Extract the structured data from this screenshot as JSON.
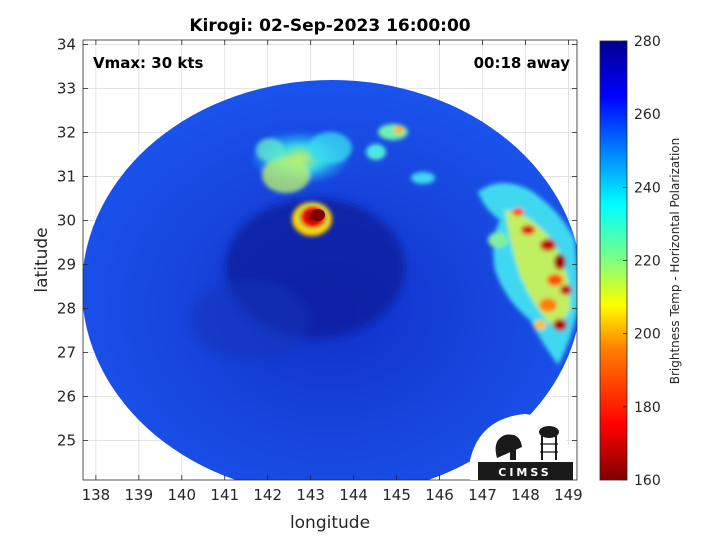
{
  "chart_data": {
    "type": "heatmap",
    "title": "Kirogi: 02-Sep-2023 16:00:00",
    "xlabel": "longitude",
    "ylabel": "latitude",
    "xlim": [
      137.7,
      149.2
    ],
    "ylim": [
      24.1,
      34.1
    ],
    "xticks": [
      138,
      139,
      140,
      141,
      142,
      143,
      144,
      145,
      146,
      147,
      148,
      149
    ],
    "yticks": [
      25,
      26,
      27,
      28,
      29,
      30,
      31,
      32,
      33,
      34
    ],
    "grid": true,
    "annotations": {
      "vmax": "Vmax: 30 kts",
      "away": "00:18 away"
    },
    "colorbar": {
      "label": "Brightness Temp - Horizontal Polarization",
      "range": [
        160,
        280
      ],
      "ticks": [
        160,
        180,
        200,
        220,
        240,
        260,
        280
      ],
      "colormap": "jet",
      "colormap_stops": [
        "#7f0000",
        "#ff0000",
        "#ff8000",
        "#ffff00",
        "#80ff80",
        "#00ffff",
        "#0080ff",
        "#0000ff",
        "#00008f"
      ]
    },
    "swath": {
      "center": [
        143.4,
        29.1
      ],
      "shape": "ellipse",
      "background_temp": 262
    },
    "features": [
      {
        "name": "deep convection core",
        "lon": 143.05,
        "lat": 30.0,
        "min_temp": 170
      },
      {
        "name": "convective cloud north",
        "lon": 142.6,
        "lat": 31.4,
        "min_temp": 222
      },
      {
        "name": "convective cell north-east",
        "lon": 144.9,
        "lat": 32.0,
        "min_temp": 215
      },
      {
        "name": "rainband east",
        "lon": 148.3,
        "lat": 29.0,
        "min_temp": 172
      },
      {
        "name": "eye region",
        "lon": 143.3,
        "lat": 28.9,
        "min_temp": 270
      }
    ]
  },
  "logo": {
    "text": "CIMSS"
  }
}
